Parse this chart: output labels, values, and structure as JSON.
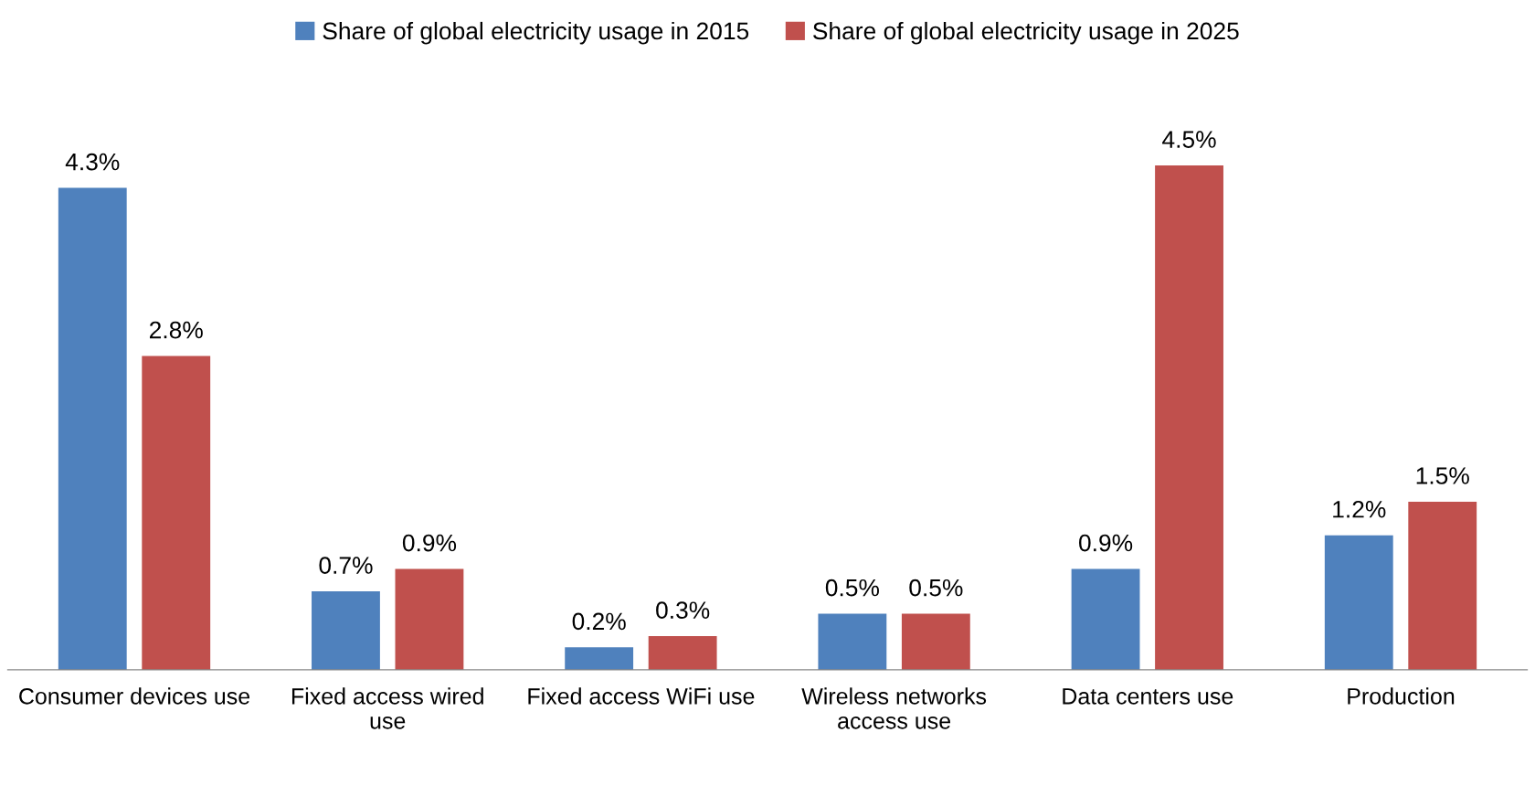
{
  "chart_data": {
    "type": "bar",
    "categories": [
      "Consumer devices use",
      "Fixed access wired use",
      "Fixed access WiFi use",
      "Wireless networks access use",
      "Data centers use",
      "Production"
    ],
    "series": [
      {
        "name": "Share of global electricity usage in 2015",
        "color": "#4f81bd",
        "values": [
          4.3,
          0.7,
          0.2,
          0.5,
          0.9,
          1.2
        ],
        "value_labels": [
          "4.3%",
          "0.7%",
          "0.2%",
          "0.5%",
          "0.9%",
          "1.2%"
        ]
      },
      {
        "name": "Share of global electricity usage in 2025",
        "color": "#c0504d",
        "values": [
          2.8,
          0.9,
          0.3,
          0.5,
          4.5,
          1.5
        ],
        "value_labels": [
          "2.8%",
          "0.9%",
          "0.3%",
          "0.5%",
          "4.5%",
          "1.5%"
        ]
      }
    ],
    "legend": "top",
    "grid": false
  }
}
